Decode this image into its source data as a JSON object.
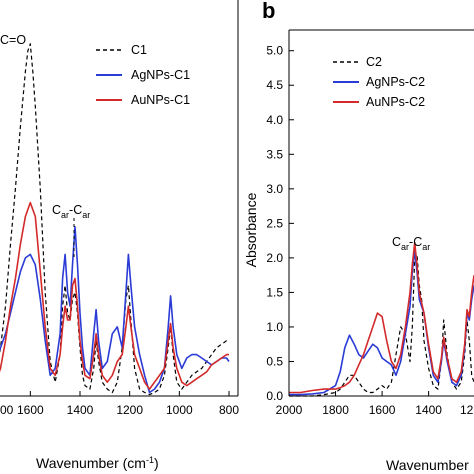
{
  "chart_data": [
    {
      "panel": "",
      "type": "line",
      "xlabel": "Wavenumber (cm",
      "xlabel_sup": "-1",
      "xlabel_close": ")",
      "ylabel": "",
      "xlim": [
        2000,
        800
      ],
      "ylim": [
        0,
        5.3
      ],
      "xticks": [
        "1600",
        "1400",
        "1200",
        "1000",
        "800"
      ],
      "xtick_values": [
        1600,
        1400,
        1200,
        1000,
        800
      ],
      "edge_tick_label": "00",
      "annotations": [
        {
          "text": "C=O"
        },
        {
          "base": "C",
          "sub": "ar",
          "mid": "-C",
          "sub2": "ar"
        }
      ],
      "legend": [
        "C1",
        "AgNPs-C1",
        "AuNPs-C1"
      ],
      "series": [
        {
          "name": "C1",
          "color": "#000000",
          "dash": "4 3",
          "x": [
            1760,
            1740,
            1720,
            1700,
            1680,
            1660,
            1640,
            1620,
            1610,
            1600,
            1590,
            1580,
            1560,
            1540,
            1520,
            1500,
            1480,
            1470,
            1460,
            1450,
            1440,
            1430,
            1420,
            1410,
            1400,
            1390,
            1380,
            1360,
            1345,
            1335,
            1325,
            1310,
            1290,
            1270,
            1250,
            1230,
            1215,
            1205,
            1195,
            1180,
            1160,
            1140,
            1120,
            1100,
            1080,
            1060,
            1045,
            1035,
            1025,
            1010,
            990,
            970,
            950,
            930,
            910,
            890,
            870,
            850,
            830,
            810,
            800
          ],
          "y": [
            0.15,
            0.3,
            0.7,
            1.3,
            2.2,
            3.0,
            3.9,
            4.7,
            5.0,
            5.1,
            4.7,
            4.2,
            3.0,
            1.5,
            0.5,
            0.2,
            0.6,
            1.3,
            1.6,
            1.2,
            1.1,
            1.4,
            1.5,
            1.2,
            0.7,
            0.3,
            0.15,
            0.1,
            0.4,
            0.8,
            0.5,
            0.2,
            0.1,
            0.05,
            0.2,
            0.7,
            1.4,
            1.6,
            1.1,
            0.4,
            0.1,
            0.05,
            0.02,
            0.05,
            0.1,
            0.3,
            0.7,
            1.0,
            0.6,
            0.2,
            0.1,
            0.2,
            0.3,
            0.35,
            0.4,
            0.5,
            0.6,
            0.7,
            0.75,
            0.8,
            0.8
          ]
        },
        {
          "name": "AgNPs-C1",
          "color": "#2b3bd6",
          "dash": "",
          "x": [
            1760,
            1740,
            1720,
            1700,
            1680,
            1660,
            1640,
            1620,
            1600,
            1580,
            1560,
            1540,
            1520,
            1500,
            1480,
            1470,
            1460,
            1450,
            1440,
            1430,
            1420,
            1410,
            1400,
            1390,
            1380,
            1360,
            1345,
            1335,
            1325,
            1310,
            1290,
            1270,
            1250,
            1230,
            1215,
            1205,
            1195,
            1180,
            1160,
            1140,
            1120,
            1100,
            1080,
            1060,
            1045,
            1035,
            1025,
            1010,
            990,
            970,
            950,
            930,
            910,
            890,
            870,
            850,
            830,
            810,
            800
          ],
          "y": [
            0.35,
            0.5,
            0.7,
            0.9,
            1.2,
            1.5,
            1.8,
            2.0,
            2.05,
            1.9,
            1.4,
            0.8,
            0.3,
            0.4,
            0.9,
            1.7,
            2.05,
            1.5,
            1.3,
            1.9,
            2.45,
            1.9,
            1.2,
            0.7,
            0.4,
            0.3,
            0.9,
            1.25,
            0.8,
            0.4,
            0.5,
            0.9,
            1.0,
            0.7,
            1.5,
            2.05,
            1.6,
            1.0,
            0.6,
            0.3,
            0.05,
            0.1,
            0.2,
            0.4,
            1.0,
            1.45,
            1.0,
            0.6,
            0.4,
            0.55,
            0.6,
            0.6,
            0.55,
            0.5,
            0.45,
            0.5,
            0.55,
            0.55,
            0.5
          ]
        },
        {
          "name": "AuNPs-C1",
          "color": "#d42a2a",
          "dash": "",
          "x": [
            1760,
            1740,
            1720,
            1700,
            1680,
            1660,
            1640,
            1620,
            1600,
            1580,
            1560,
            1540,
            1520,
            1500,
            1480,
            1470,
            1460,
            1450,
            1440,
            1430,
            1420,
            1410,
            1400,
            1390,
            1380,
            1360,
            1345,
            1335,
            1325,
            1310,
            1290,
            1270,
            1250,
            1230,
            1215,
            1205,
            1195,
            1180,
            1160,
            1140,
            1120,
            1100,
            1080,
            1060,
            1045,
            1035,
            1025,
            1010,
            990,
            970,
            950,
            930,
            910,
            890,
            870,
            850,
            830,
            810,
            800
          ],
          "y": [
            0.1,
            0.2,
            0.4,
            0.8,
            1.3,
            1.7,
            2.2,
            2.6,
            2.8,
            2.6,
            1.8,
            1.0,
            0.4,
            0.3,
            0.6,
            1.0,
            1.3,
            1.1,
            1.1,
            1.6,
            1.7,
            1.3,
            0.8,
            0.5,
            0.3,
            0.25,
            0.6,
            0.9,
            0.6,
            0.3,
            0.2,
            0.3,
            0.5,
            0.6,
            1.0,
            1.3,
            1.0,
            0.6,
            0.4,
            0.2,
            0.1,
            0.2,
            0.3,
            0.4,
            0.8,
            1.05,
            0.7,
            0.4,
            0.2,
            0.15,
            0.2,
            0.25,
            0.3,
            0.35,
            0.45,
            0.5,
            0.55,
            0.6,
            0.6
          ]
        }
      ]
    },
    {
      "panel": "b",
      "type": "line",
      "xlabel": "Wavenumber",
      "ylabel": "Absorbance",
      "xlim": [
        2000,
        1205
      ],
      "ylim": [
        0,
        5.3
      ],
      "xticks": [
        "2000",
        "1800",
        "1600",
        "1400"
      ],
      "xtick_values": [
        2000,
        1800,
        1600,
        1400
      ],
      "edge_tick_label": "12",
      "yticks": [
        "0.0",
        "0.5",
        "1.0",
        "1.5",
        "2.0",
        "2.5",
        "3.0",
        "3.5",
        "4.0",
        "4.5",
        "5.0"
      ],
      "ytick_values": [
        0,
        0.5,
        1.0,
        1.5,
        2.0,
        2.5,
        3.0,
        3.5,
        4.0,
        4.5,
        5.0
      ],
      "annotations": [
        {
          "base": "C",
          "sub": "ar",
          "mid": "-C",
          "sub2": "ar"
        }
      ],
      "legend": [
        "C2",
        "AgNPs-C2",
        "AuNPs-C2"
      ],
      "series": [
        {
          "name": "C2",
          "color": "#000000",
          "dash": "4 3",
          "x": [
            2000,
            1950,
            1900,
            1850,
            1800,
            1780,
            1760,
            1740,
            1720,
            1700,
            1680,
            1660,
            1640,
            1620,
            1600,
            1580,
            1560,
            1540,
            1520,
            1500,
            1480,
            1470,
            1460,
            1450,
            1440,
            1430,
            1420,
            1400,
            1380,
            1360,
            1345,
            1335,
            1320,
            1300,
            1280,
            1260,
            1245,
            1235,
            1225,
            1215,
            1205
          ],
          "y": [
            0,
            0,
            0,
            0.02,
            0.05,
            0.1,
            0.2,
            0.3,
            0.3,
            0.2,
            0.1,
            0.05,
            0.05,
            0.1,
            0.15,
            0.1,
            0.2,
            0.6,
            1.0,
            0.9,
            0.5,
            1.0,
            2.0,
            2.05,
            1.6,
            1.4,
            0.8,
            0.4,
            0.15,
            0.1,
            0.5,
            1.1,
            0.6,
            0.2,
            0.1,
            0.2,
            0.6,
            1.1,
            0.8,
            0.3,
            0.2
          ]
        },
        {
          "name": "AgNPs-C2",
          "color": "#2b3bd6",
          "dash": "",
          "x": [
            2000,
            1950,
            1900,
            1850,
            1800,
            1780,
            1760,
            1740,
            1720,
            1700,
            1680,
            1660,
            1640,
            1620,
            1600,
            1580,
            1560,
            1540,
            1520,
            1500,
            1480,
            1470,
            1460,
            1450,
            1440,
            1430,
            1420,
            1400,
            1380,
            1360,
            1345,
            1335,
            1320,
            1300,
            1280,
            1260,
            1245,
            1235,
            1225,
            1215,
            1205
          ],
          "y": [
            0.02,
            0.02,
            0.03,
            0.05,
            0.15,
            0.35,
            0.7,
            0.88,
            0.75,
            0.6,
            0.55,
            0.65,
            0.75,
            0.7,
            0.55,
            0.5,
            0.45,
            0.3,
            0.5,
            0.9,
            1.3,
            1.8,
            2.1,
            1.8,
            1.4,
            1.3,
            1.2,
            0.7,
            0.3,
            0.2,
            0.5,
            0.8,
            0.5,
            0.2,
            0.15,
            0.3,
            0.7,
            1.2,
            1.1,
            1.4,
            1.6
          ]
        },
        {
          "name": "AuNPs-C2",
          "color": "#d42a2a",
          "dash": "",
          "x": [
            2000,
            1950,
            1900,
            1850,
            1800,
            1780,
            1760,
            1740,
            1720,
            1700,
            1680,
            1660,
            1640,
            1620,
            1600,
            1580,
            1560,
            1540,
            1520,
            1500,
            1480,
            1470,
            1460,
            1450,
            1440,
            1430,
            1420,
            1400,
            1380,
            1360,
            1345,
            1335,
            1320,
            1300,
            1280,
            1260,
            1245,
            1235,
            1225,
            1215,
            1205
          ],
          "y": [
            0.05,
            0.05,
            0.08,
            0.1,
            0.1,
            0.12,
            0.15,
            0.2,
            0.3,
            0.45,
            0.6,
            0.8,
            1.0,
            1.2,
            1.15,
            0.8,
            0.5,
            0.4,
            0.6,
            1.0,
            1.5,
            1.9,
            2.22,
            1.9,
            1.5,
            1.35,
            1.2,
            0.75,
            0.35,
            0.25,
            0.55,
            0.85,
            0.55,
            0.25,
            0.2,
            0.35,
            0.75,
            1.25,
            1.15,
            1.5,
            1.75
          ]
        }
      ]
    }
  ]
}
